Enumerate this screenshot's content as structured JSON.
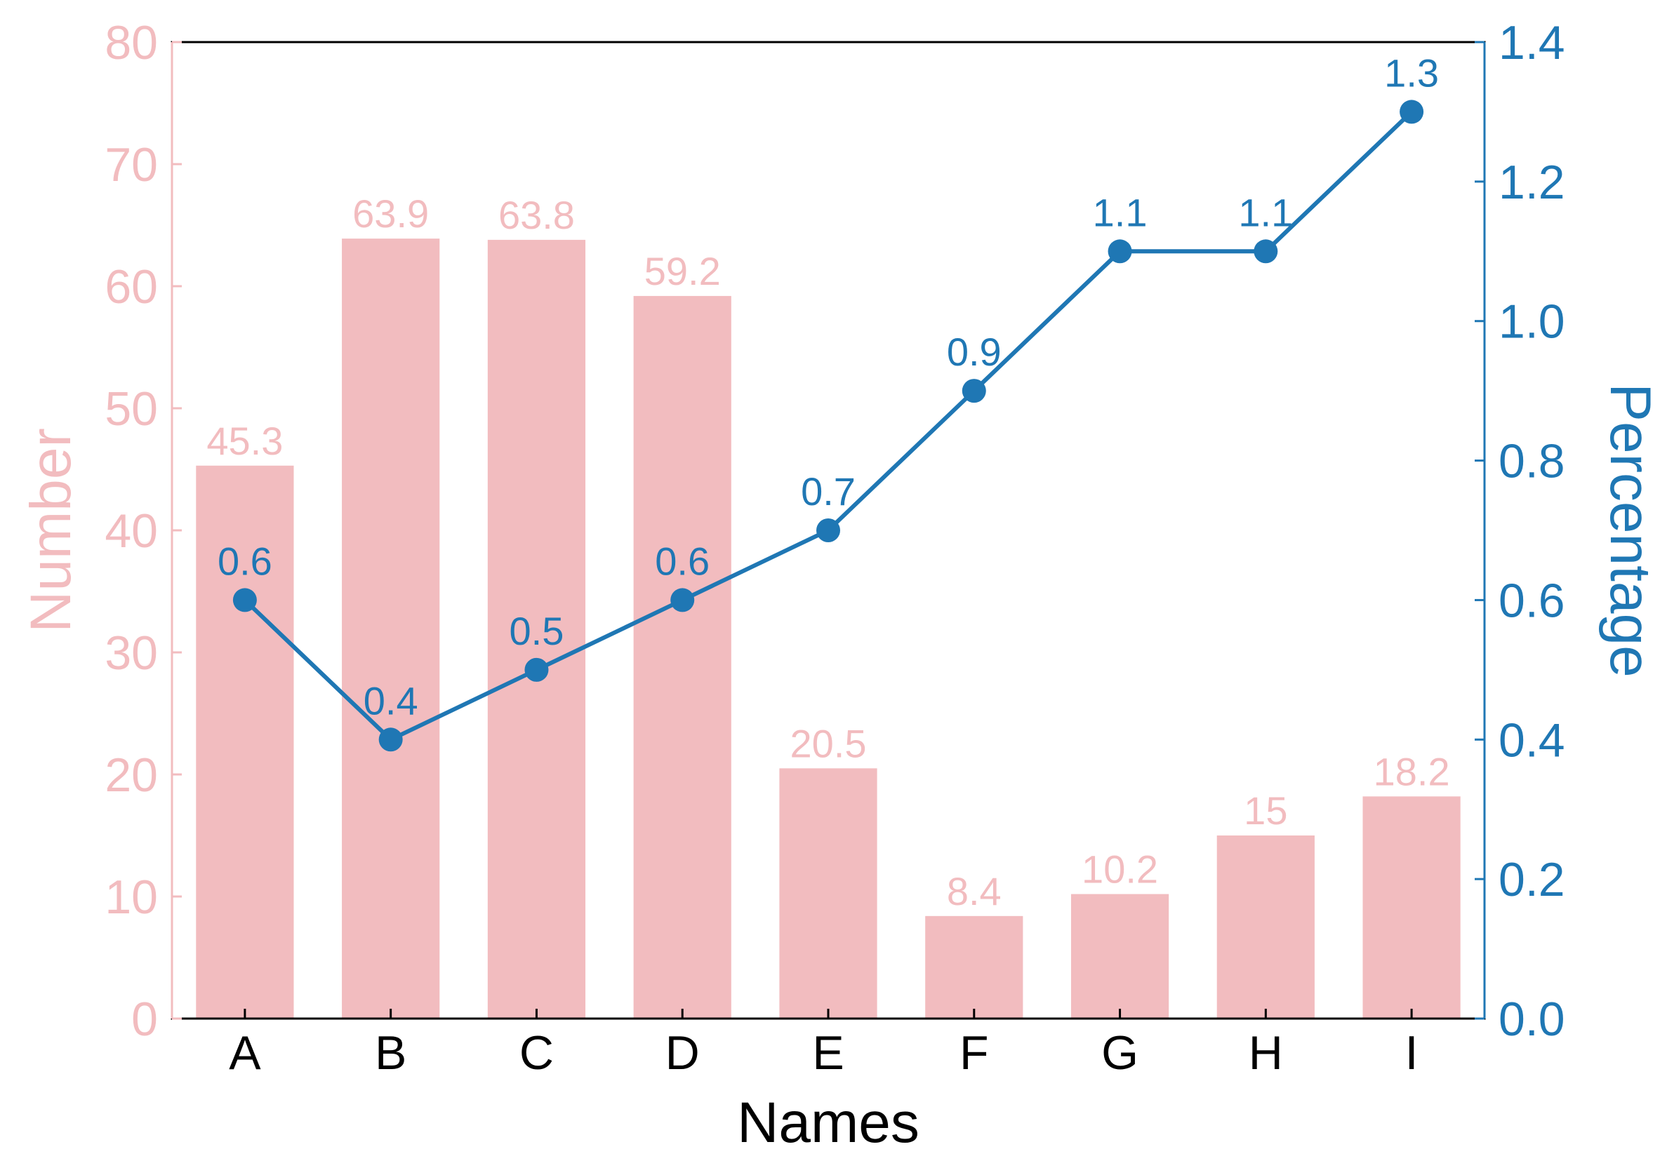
{
  "chart_data": {
    "type": "bar+line",
    "categories": [
      "A",
      "B",
      "C",
      "D",
      "E",
      "F",
      "G",
      "H",
      "I"
    ],
    "xlabel": "Names",
    "bar_series": {
      "axis": "left",
      "ylabel": "Number",
      "ylim": [
        0,
        80
      ],
      "yticks": [
        0,
        10,
        20,
        30,
        40,
        50,
        60,
        70,
        80
      ],
      "values": [
        45.3,
        63.9,
        63.8,
        59.2,
        20.5,
        8.4,
        10.2,
        15,
        18.2
      ],
      "labels": [
        "45.3",
        "63.9",
        "63.8",
        "59.2",
        "20.5",
        "8.4",
        "10.2",
        "15",
        "18.2"
      ],
      "color": "#f2bcbf"
    },
    "line_series": {
      "axis": "right",
      "ylabel": "Percentage",
      "ylim": [
        0,
        1.4
      ],
      "yticks": [
        "0.0",
        "0.2",
        "0.4",
        "0.6",
        "0.8",
        "1.0",
        "1.2",
        "1.4"
      ],
      "values": [
        0.6,
        0.4,
        0.5,
        0.6,
        0.7,
        0.9,
        1.1,
        1.1,
        1.3
      ],
      "labels": [
        "0.6",
        "0.4",
        "0.5",
        "0.6",
        "0.7",
        "0.9",
        "1.1",
        "1.1",
        "1.3"
      ],
      "color": "#1f77b4"
    },
    "grid": false,
    "legend": "none"
  }
}
